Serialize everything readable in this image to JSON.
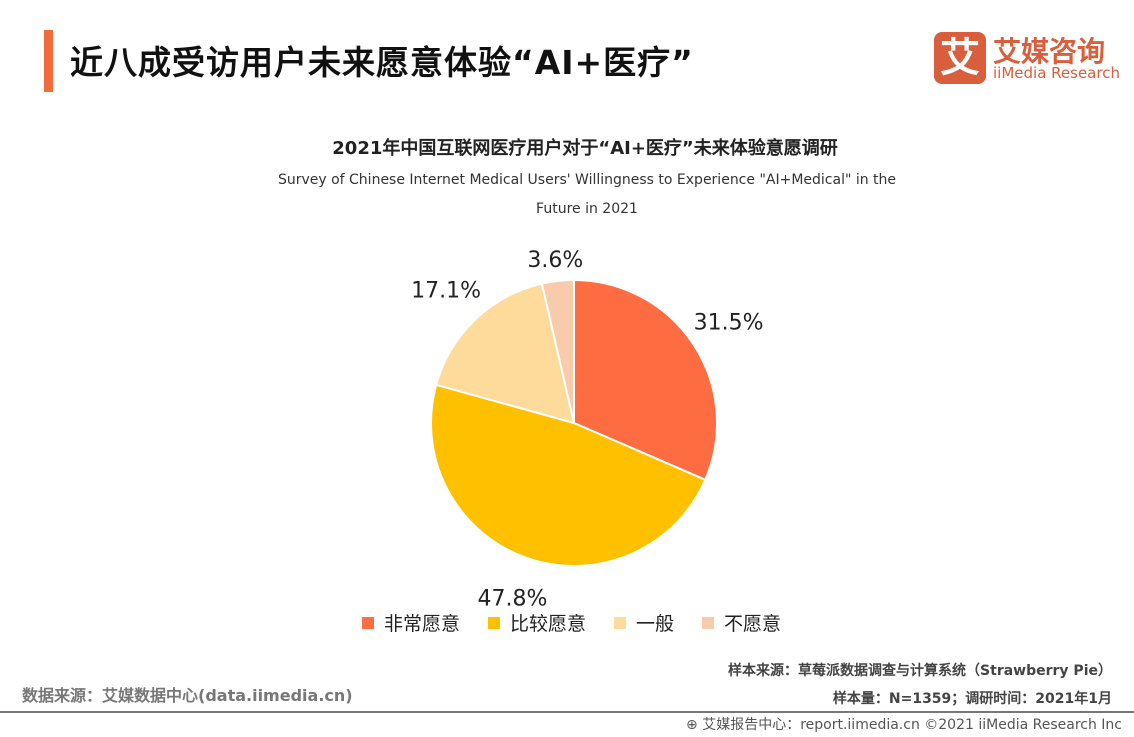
{
  "header": {
    "title": "近八成受访用户未来愿意体验“AI+医疗”"
  },
  "logo": {
    "mark": "艾",
    "cn": "艾媒咨询",
    "en": "iiMedia Research",
    "color": "#D95E3C"
  },
  "chart_data": {
    "type": "pie",
    "title": "2021年中国互联网医疗用户对于“AI+医疗”未来体验意愿调研",
    "subtitle": "Survey of Chinese Internet Medical Users' Willingness to Experience \"AI+Medical\" in the Future in 2021",
    "categories": [
      "非常愿意",
      "比较愿意",
      "一般",
      "不愿意"
    ],
    "values": [
      31.5,
      47.8,
      17.1,
      3.6
    ],
    "labels": [
      "31.5%",
      "47.8%",
      "17.1%",
      "3.6%"
    ],
    "colors": [
      "#FE6D42",
      "#FFC000",
      "#FEDB9B",
      "#F8CBAD"
    ],
    "legend": "bottom"
  },
  "footer": {
    "source_left": "数据来源：艾媒数据中心(data.iimedia.cn)",
    "sample_source": "样本来源：草莓派数据调查与计算系统（Strawberry Pie）",
    "sample_size": "样本量：N=1359；调研时间：2021年1月",
    "report": "艾媒报告中心：report.iimedia.cn   ©2021  iiMedia Research  Inc"
  }
}
